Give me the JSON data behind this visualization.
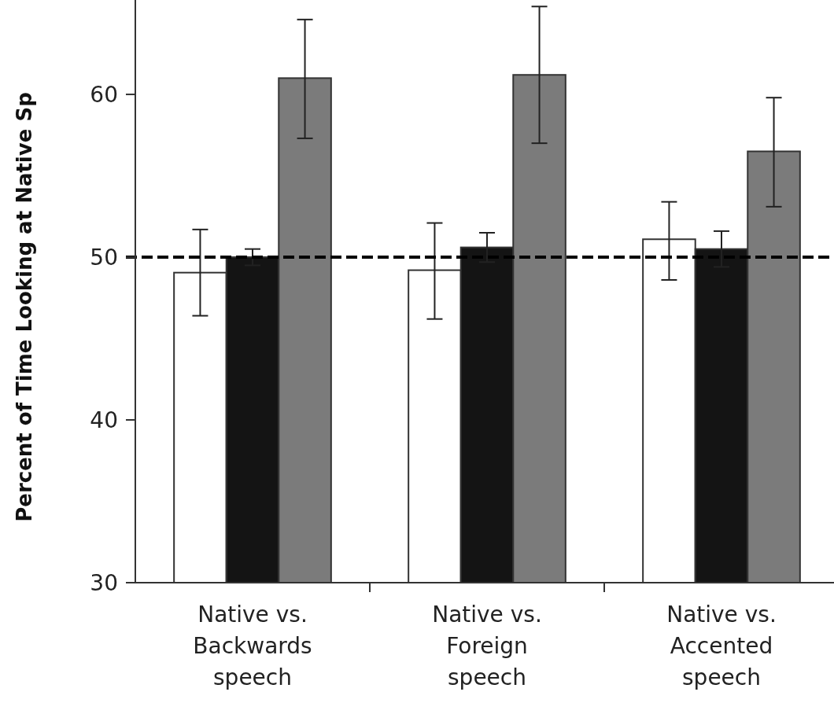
{
  "chart_data": {
    "type": "bar",
    "ylabel": "Percent of Time Looking at Native Sp",
    "categories": [
      "Native vs. Backwards speech",
      "Native vs. Foreign speech",
      "Native vs. Accented speech"
    ],
    "series": [
      {
        "color": "#ffffff",
        "values": [
          49.05,
          49.2,
          51.1
        ],
        "errors": [
          [
            46.4,
            51.7
          ],
          [
            46.2,
            52.1
          ],
          [
            48.6,
            53.4
          ]
        ]
      },
      {
        "color": "#141414",
        "values": [
          50.0,
          50.6,
          50.5
        ],
        "errors": [
          0.5,
          0.9,
          1.1
        ]
      },
      {
        "color": "#7b7b7b",
        "values": [
          61.0,
          61.2,
          56.5
        ],
        "errors": [
          [
            57.3,
            64.6
          ],
          [
            57.0,
            65.4
          ],
          [
            53.1,
            59.8
          ]
        ]
      }
    ],
    "ylim": [
      30,
      65.8
    ],
    "yticks": [
      30,
      40,
      50,
      60
    ],
    "grid": false,
    "ref_lines": [
      {
        "axis": "y",
        "value": 50,
        "color": "#000000",
        "line_style": "dashed"
      }
    ]
  }
}
